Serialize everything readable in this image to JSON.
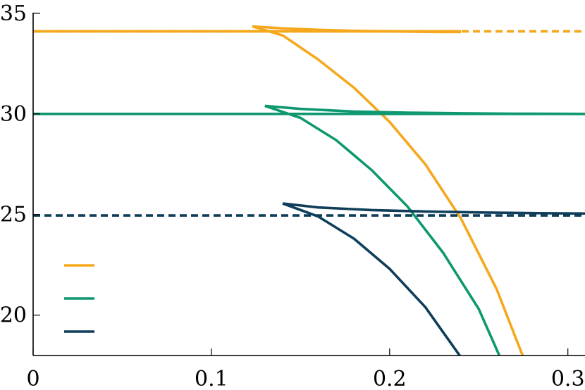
{
  "chart_data": {
    "type": "line",
    "title": "",
    "xlabel": "",
    "ylabel": "",
    "xlim": [
      0,
      0.31
    ],
    "ylim": [
      18,
      35
    ],
    "xticks": [
      0,
      0.1,
      0.2,
      0.3
    ],
    "xtick_labels": [
      "0",
      "0.1",
      "0.2",
      "0.3"
    ],
    "yticks": [
      20,
      25,
      30,
      35
    ],
    "ytick_labels": [
      "20",
      "25",
      "30",
      "35"
    ],
    "grid": false,
    "legend": {
      "placement": "lower-left",
      "entries": [
        "",
        "",
        ""
      ]
    },
    "series": [
      {
        "color": "#F5A81C",
        "style": "dashed",
        "x": [
          0,
          0.31
        ],
        "y": [
          34.1,
          34.1
        ]
      },
      {
        "color": "#F5A81C",
        "style": "solid",
        "x": [
          0,
          0.24
        ],
        "y": [
          34.1,
          34.1
        ]
      },
      {
        "color": "#F5A81C",
        "style": "solid",
        "x": [
          0.123,
          0.14,
          0.16,
          0.18,
          0.2,
          0.22,
          0.24
        ],
        "y": [
          34.35,
          34.25,
          34.18,
          34.13,
          34.1,
          34.08,
          34.07
        ]
      },
      {
        "color": "#F5A81C",
        "style": "solid",
        "x": [
          0.123,
          0.14,
          0.16,
          0.18,
          0.2,
          0.22,
          0.24,
          0.26,
          0.275
        ],
        "y": [
          34.35,
          33.9,
          32.7,
          31.3,
          29.6,
          27.5,
          24.8,
          21.3,
          17.9
        ]
      },
      {
        "color": "#0E9870",
        "style": "solid",
        "x": [
          0,
          0.31
        ],
        "y": [
          30.0,
          30.0
        ]
      },
      {
        "color": "#0E9870",
        "style": "solid",
        "x": [
          0.13,
          0.15,
          0.18,
          0.21,
          0.24,
          0.27,
          0.31
        ],
        "y": [
          30.4,
          30.25,
          30.12,
          30.06,
          30.03,
          30.01,
          30.0
        ]
      },
      {
        "color": "#0E9870",
        "style": "solid",
        "x": [
          0.13,
          0.15,
          0.17,
          0.19,
          0.21,
          0.23,
          0.25,
          0.262
        ],
        "y": [
          30.4,
          29.8,
          28.7,
          27.2,
          25.4,
          23.1,
          20.3,
          17.9
        ]
      },
      {
        "color": "#0F3E5A",
        "style": "dashed",
        "x": [
          0,
          0.31
        ],
        "y": [
          24.95,
          24.95
        ]
      },
      {
        "color": "#0F3E5A",
        "style": "solid",
        "x": [
          0.14,
          0.16,
          0.19,
          0.22,
          0.25,
          0.28,
          0.31
        ],
        "y": [
          25.55,
          25.35,
          25.22,
          25.15,
          25.1,
          25.07,
          25.05
        ]
      },
      {
        "color": "#0F3E5A",
        "style": "solid",
        "x": [
          0.14,
          0.16,
          0.18,
          0.2,
          0.22,
          0.24
        ],
        "y": [
          25.55,
          24.9,
          23.8,
          22.3,
          20.4,
          17.9
        ]
      }
    ]
  }
}
